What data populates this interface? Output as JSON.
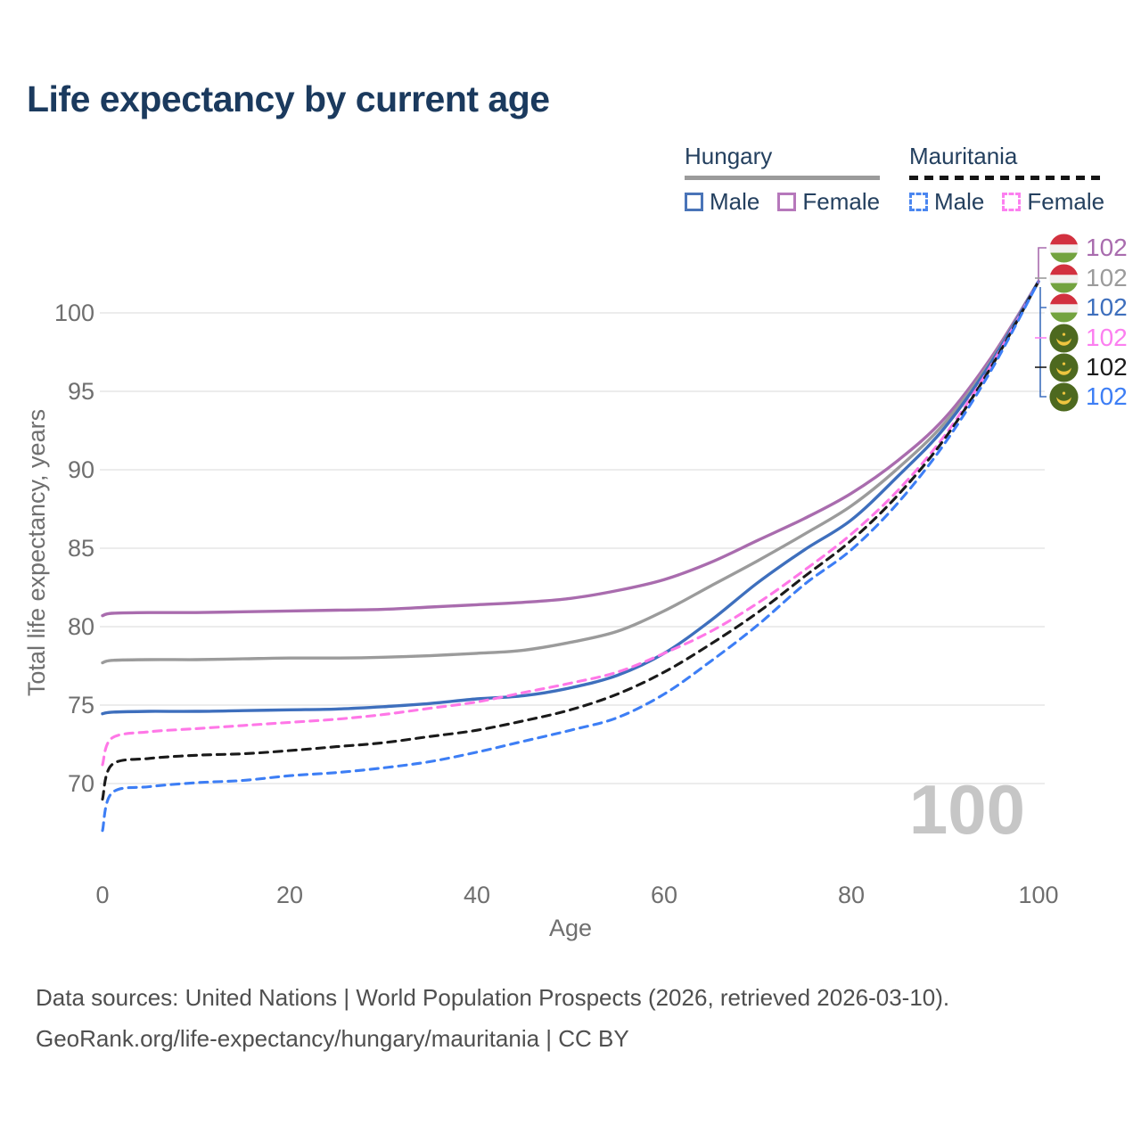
{
  "title": "Life expectancy by current age",
  "legend": {
    "groups": [
      {
        "title": "Hungary",
        "line_style": "solid",
        "items": [
          {
            "label": "Male"
          },
          {
            "label": "Female"
          }
        ]
      },
      {
        "title": "Mauritania",
        "line_style": "dashed",
        "items": [
          {
            "label": "Male"
          },
          {
            "label": "Female"
          }
        ]
      }
    ]
  },
  "chart_data": {
    "type": "line",
    "title": "Life expectancy by current age",
    "xlabel": "Age",
    "ylabel": "Total life expectancy, years",
    "xlim": [
      0,
      100
    ],
    "ylim": [
      66,
      103
    ],
    "xticks": [
      0,
      20,
      40,
      60,
      80,
      100
    ],
    "yticks": [
      70,
      75,
      80,
      85,
      90,
      95,
      100
    ],
    "grid": "horizontal",
    "legend_position": "top-right",
    "x": [
      0,
      1,
      5,
      10,
      15,
      20,
      25,
      30,
      35,
      40,
      45,
      50,
      55,
      60,
      65,
      70,
      75,
      80,
      85,
      90,
      95,
      100
    ],
    "series": [
      {
        "name": "Hungary Female",
        "country": "Hungary",
        "sex": "Female",
        "color": "#a96cae",
        "dash": "solid",
        "values": [
          80.7,
          80.85,
          80.9,
          80.9,
          80.95,
          81.0,
          81.05,
          81.1,
          81.25,
          81.4,
          81.55,
          81.8,
          82.3,
          83.0,
          84.1,
          85.5,
          86.9,
          88.5,
          90.6,
          93.3,
          97.2,
          102
        ]
      },
      {
        "name": "Hungary Total",
        "country": "Hungary",
        "sex": "Both",
        "color": "#9b9b9b",
        "dash": "solid",
        "values": [
          77.7,
          77.85,
          77.9,
          77.9,
          77.95,
          78.0,
          78.0,
          78.05,
          78.15,
          78.3,
          78.5,
          79.0,
          79.7,
          81.0,
          82.6,
          84.2,
          85.9,
          87.7,
          90.1,
          93.0,
          97.0,
          102
        ]
      },
      {
        "name": "Hungary Male",
        "country": "Hungary",
        "sex": "Male",
        "color": "#3e6fbd",
        "dash": "solid",
        "values": [
          74.45,
          74.55,
          74.6,
          74.6,
          74.65,
          74.7,
          74.75,
          74.9,
          75.1,
          75.4,
          75.6,
          76.1,
          76.9,
          78.3,
          80.4,
          82.8,
          84.9,
          86.8,
          89.6,
          92.7,
          96.9,
          102
        ]
      },
      {
        "name": "Mauritania Female",
        "country": "Mauritania",
        "sex": "Female",
        "color": "#ff77e7",
        "dash": "dashed",
        "values": [
          71.2,
          72.9,
          73.3,
          73.5,
          73.7,
          73.9,
          74.1,
          74.4,
          74.8,
          75.2,
          75.8,
          76.4,
          77.1,
          78.3,
          79.7,
          81.5,
          83.6,
          85.9,
          88.7,
          92.2,
          96.7,
          102
        ]
      },
      {
        "name": "Mauritania Total",
        "country": "Mauritania",
        "sex": "Both",
        "color": "#1a1a1a",
        "dash": "dashed",
        "values": [
          69.0,
          71.2,
          71.6,
          71.8,
          71.9,
          72.1,
          72.35,
          72.6,
          73.0,
          73.4,
          74.0,
          74.7,
          75.7,
          77.1,
          78.9,
          80.9,
          83.2,
          85.5,
          88.4,
          92.0,
          96.6,
          102
        ]
      },
      {
        "name": "Mauritania Male",
        "country": "Mauritania",
        "sex": "Male",
        "color": "#3d7ef5",
        "dash": "dashed",
        "values": [
          67.0,
          69.4,
          69.8,
          70.05,
          70.2,
          70.5,
          70.7,
          71.0,
          71.4,
          72.0,
          72.7,
          73.4,
          74.2,
          75.7,
          77.8,
          80.1,
          82.7,
          84.9,
          87.9,
          91.7,
          96.4,
          102
        ]
      }
    ],
    "end_labels": [
      {
        "value": "102",
        "flag": "hungary",
        "series": "Hungary Female",
        "color": "#a96cae"
      },
      {
        "value": "102",
        "flag": "hungary",
        "series": "Hungary Total",
        "color": "#9b9b9b"
      },
      {
        "value": "102",
        "flag": "hungary",
        "series": "Hungary Male",
        "color": "#3e6fbd"
      },
      {
        "value": "102",
        "flag": "mauritania",
        "series": "Mauritania Female",
        "color": "#fc7ff0"
      },
      {
        "value": "102",
        "flag": "mauritania",
        "series": "Mauritania Total",
        "color": "#1a1a1a"
      },
      {
        "value": "102",
        "flag": "mauritania",
        "series": "Mauritania Male",
        "color": "#3d7ef5"
      }
    ],
    "watermark_age": "100"
  },
  "footer": {
    "line1": "Data sources: United Nations | World Population Prospects (2026, retrieved 2026-03-10).",
    "line2": "GeoRank.org/life-expectancy/hungary/mauritania | CC BY"
  },
  "colors": {
    "title": "#1b3a5e",
    "axis_text": "#6f6f6f",
    "gridline": "#eaeaea",
    "watermark": "#c6c6c6",
    "footer_text": "#4f4f4f",
    "hungary_flag": [
      "#d2313f",
      "#f1f0ee",
      "#73a33f"
    ],
    "mauritania_flag": [
      "#4d691f",
      "#efc53f"
    ]
  }
}
